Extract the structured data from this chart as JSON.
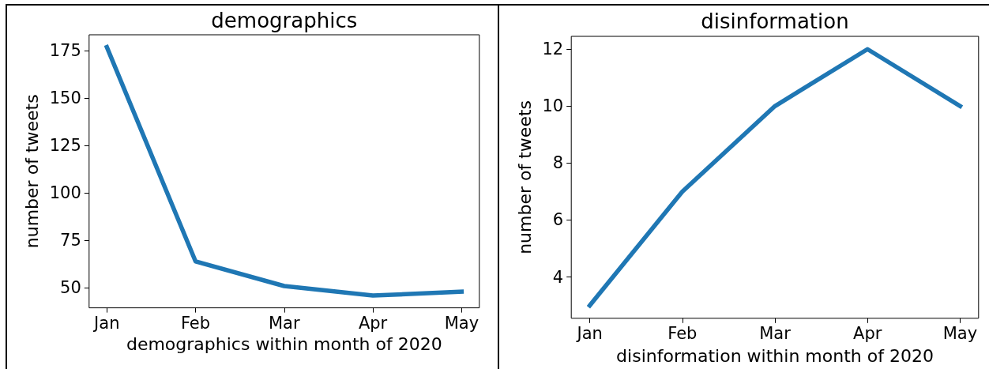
{
  "chart_data": [
    {
      "type": "line",
      "title": "demographics",
      "xlabel": "demographics within month of 2020",
      "ylabel": "number of tweets",
      "categories": [
        "Jan",
        "Feb",
        "Mar",
        "Apr",
        "May"
      ],
      "values": [
        177,
        64,
        51,
        46,
        48
      ],
      "color": "#1f77b4",
      "ylim": [
        39.5,
        183.5
      ],
      "yticks": [
        50,
        75,
        100,
        125,
        150,
        175
      ],
      "marker": "none"
    },
    {
      "type": "line",
      "title": "disinformation",
      "xlabel": "disinformation within month of 2020",
      "ylabel": "number of tweets",
      "categories": [
        "Jan",
        "Feb",
        "Mar",
        "Apr",
        "May"
      ],
      "values": [
        3,
        7,
        10,
        12,
        10
      ],
      "color": "#1f77b4",
      "ylim": [
        2.55,
        12.45
      ],
      "yticks": [
        4,
        6,
        8,
        10,
        12
      ],
      "marker": "none"
    }
  ]
}
